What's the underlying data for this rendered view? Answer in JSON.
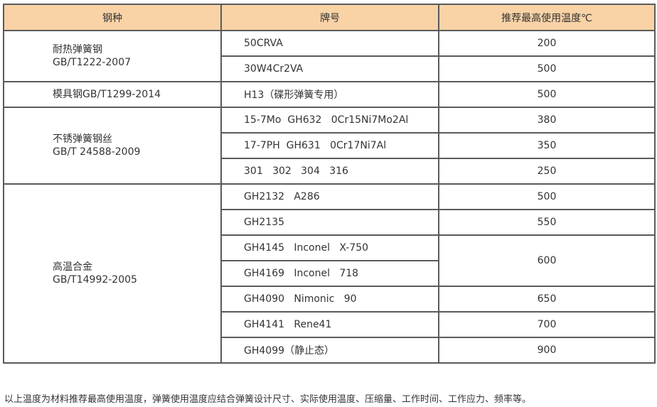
{
  "header": {
    "col1": "钢种",
    "col2": "牌号",
    "col3": "推荐最高使用温度℃"
  },
  "groups": [
    {
      "name": "耐热弹簧钢",
      "standard": "GB/T1222-2007",
      "rows": [
        {
          "grade": "50CRVA",
          "temp": "200"
        },
        {
          "grade": "30W4Cr2VA",
          "temp": "500"
        }
      ]
    },
    {
      "name": "模具钢GB/T1299-2014",
      "rows": [
        {
          "grade": "H13（碟形弹簧专用）",
          "temp": "500"
        }
      ]
    },
    {
      "name": "不锈弹簧钢丝",
      "standard": "GB/T 24588-2009",
      "rows": [
        {
          "grade": "15-7Mo  GH632   0Cr15Ni7Mo2Al",
          "temp": "380"
        },
        {
          "grade": "17-7PH  GH631   0Cr17Ni7Al",
          "temp": "350"
        },
        {
          "grade": "301   302   304   316",
          "temp": "250"
        }
      ]
    },
    {
      "name": "高温合金",
      "standard": "GB/T14992-2005",
      "rows": [
        {
          "grade": "GH2132   A286",
          "temp": "500"
        },
        {
          "grade": "GH2135",
          "temp": "550"
        },
        {
          "grade": "GH4145   Inconel   X-750",
          "temp": "600"
        },
        {
          "grade": "GH4169   Inconel   718"
        },
        {
          "grade": "GH4090   Nimonic   90",
          "temp": "650"
        },
        {
          "grade": "GH4141   Rene41",
          "temp": "700"
        },
        {
          "grade": "GH4099（静止态）",
          "temp": "900"
        }
      ]
    }
  ],
  "note": "以上温度为材料推荐最高使用温度，弹簧使用温度应结合弹簧设计尺寸、实际使用温度、压缩量、工作时间、工作应力、频率等。"
}
